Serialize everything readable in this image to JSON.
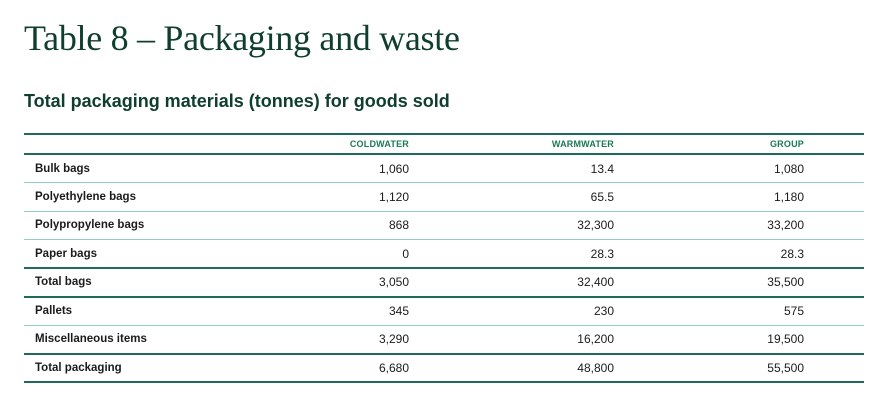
{
  "title": "Table 8 – Packaging and waste",
  "subtitle": "Total packaging materials (tonnes) for goods sold",
  "table": {
    "headers": [
      "",
      "COLDWATER",
      "WARMWATER",
      "GROUP"
    ],
    "rows": [
      {
        "label": "Bulk bags",
        "coldwater": "1,060",
        "warmwater": "13.4",
        "group": "1,080",
        "total": false
      },
      {
        "label": "Polyethylene bags",
        "coldwater": "1,120",
        "warmwater": "65.5",
        "group": "1,180",
        "total": false
      },
      {
        "label": "Polypropylene bags",
        "coldwater": "868",
        "warmwater": "32,300",
        "group": "33,200",
        "total": false
      },
      {
        "label": "Paper bags",
        "coldwater": "0",
        "warmwater": "28.3",
        "group": "28.3",
        "total": false
      },
      {
        "label": "Total bags",
        "coldwater": "3,050",
        "warmwater": "32,400",
        "group": "35,500",
        "total": true
      },
      {
        "label": "Pallets",
        "coldwater": "345",
        "warmwater": "230",
        "group": "575",
        "total": false
      },
      {
        "label": "Miscellaneous items",
        "coldwater": "3,290",
        "warmwater": "16,200",
        "group": "19,500",
        "total": false
      },
      {
        "label": "Total packaging",
        "coldwater": "6,680",
        "warmwater": "48,800",
        "group": "55,500",
        "total": true
      }
    ]
  },
  "colors": {
    "heading": "#0f3f2c",
    "header_text": "#1a7a55",
    "rule_dark": "#1e6b5c",
    "rule_light": "#8fcfc6"
  }
}
